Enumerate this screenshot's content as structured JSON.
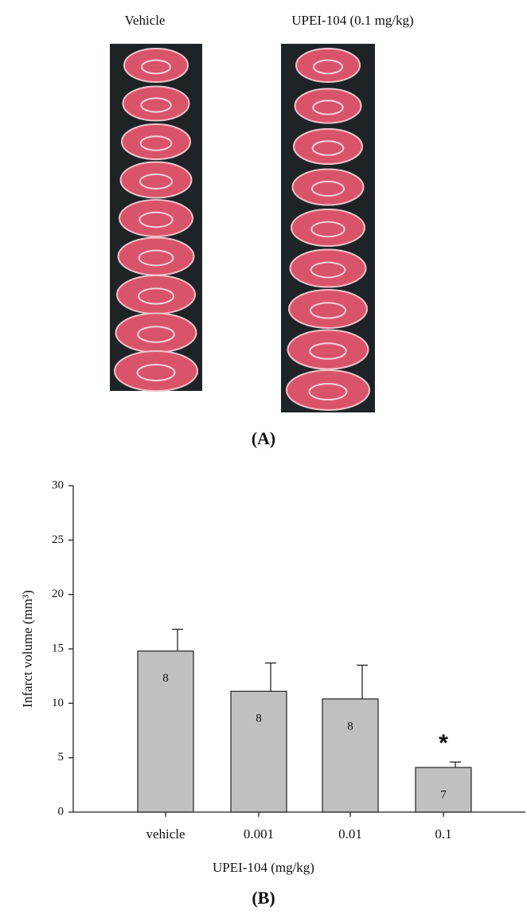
{
  "panel_a": {
    "labels": [
      "Vehicle",
      "UPEI-104 (0.1 mg/kg)"
    ],
    "panel_label": "(A)"
  },
  "chart_data": {
    "type": "bar",
    "panel_label": "(B)",
    "xlabel": "UPEI-104 (mg/kg)",
    "ylabel": "Infarct volume (mm³)",
    "categories": [
      "vehicle",
      "0.001",
      "0.01",
      "0.1"
    ],
    "values": [
      14.8,
      11.1,
      10.4,
      4.1
    ],
    "errors": [
      2.0,
      2.6,
      3.1,
      0.5
    ],
    "n": [
      8,
      8,
      8,
      7
    ],
    "significance": [
      null,
      null,
      null,
      "*"
    ],
    "color": "#c0c0c0",
    "ylim": [
      0,
      30
    ],
    "yticks": [
      0,
      5,
      10,
      15,
      20,
      25,
      30
    ]
  }
}
